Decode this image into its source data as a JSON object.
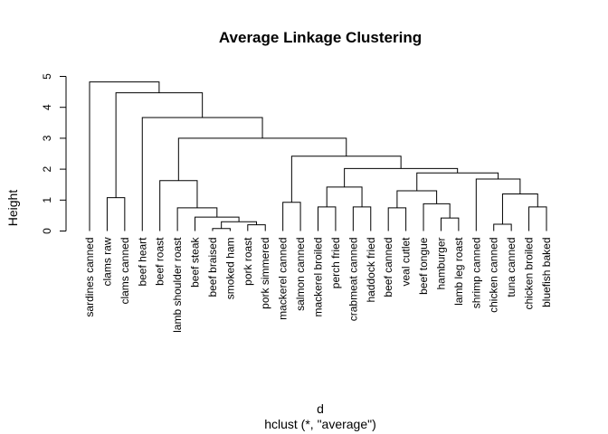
{
  "chart_data": {
    "type": "dendrogram",
    "title": "Average Linkage Clustering",
    "ylabel": "Height",
    "xlabel": "d",
    "subtitle": "hclust (*, \"average\")",
    "leaves": [
      "sardines canned",
      "clams raw",
      "clams canned",
      "beef heart",
      "beef roast",
      "lamb shoulder roast",
      "beef steak",
      "beef braised",
      "smoked ham",
      "pork roast",
      "pork simmered",
      "mackerel canned",
      "salmon canned",
      "mackerel broiled",
      "perch fried",
      "crabmeat canned",
      "haddock fried",
      "beef canned",
      "veal cutlet",
      "beef tongue",
      "hamburger",
      "lamb leg roast",
      "shrimp canned",
      "chicken canned",
      "tuna canned",
      "chicken broiled",
      "bluefish baked"
    ],
    "merge": [
      [
        -8,
        -9
      ],
      [
        -10,
        -11
      ],
      [
        1,
        2
      ],
      [
        -24,
        -25
      ],
      [
        -21,
        -22
      ],
      [
        -7,
        3
      ],
      [
        -6,
        6
      ],
      [
        -18,
        -19
      ],
      [
        -14,
        -15
      ],
      [
        -16,
        -17
      ],
      [
        -26,
        -27
      ],
      [
        -20,
        5
      ],
      [
        -12,
        -13
      ],
      [
        -2,
        -3
      ],
      [
        4,
        11
      ],
      [
        8,
        12
      ],
      [
        9,
        10
      ],
      [
        -5,
        7
      ],
      [
        -23,
        15
      ],
      [
        16,
        19
      ],
      [
        17,
        20
      ],
      [
        13,
        21
      ],
      [
        18,
        22
      ],
      [
        -4,
        23
      ],
      [
        14,
        24
      ],
      [
        -1,
        25
      ]
    ],
    "heights": [
      0.08,
      0.2,
      0.3,
      0.22,
      0.42,
      0.45,
      0.75,
      0.75,
      0.78,
      0.78,
      0.78,
      0.88,
      0.93,
      1.08,
      1.2,
      1.3,
      1.42,
      1.63,
      1.68,
      1.88,
      2.02,
      2.42,
      3.0,
      3.67,
      4.47,
      4.82
    ],
    "ylim": [
      0,
      5
    ],
    "yticks": [
      0,
      1,
      2,
      3,
      4,
      5
    ],
    "color": "#000000"
  }
}
